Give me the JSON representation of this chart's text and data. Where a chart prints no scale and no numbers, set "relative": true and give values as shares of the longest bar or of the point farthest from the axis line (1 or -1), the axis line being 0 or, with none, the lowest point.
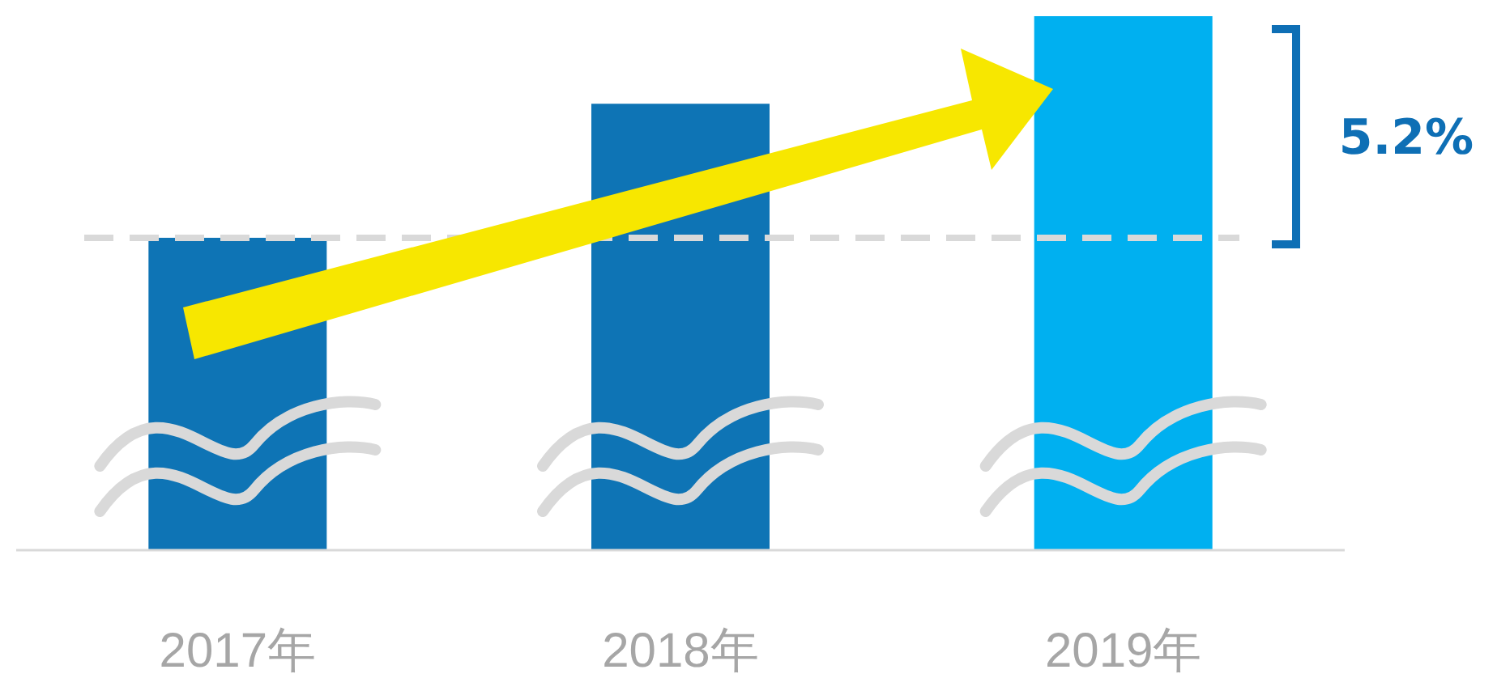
{
  "chart_data": {
    "type": "bar",
    "relative": true,
    "categories": [
      "2017年",
      "2018年",
      "2019年"
    ],
    "values": [
      0.585,
      0.836,
      1
    ],
    "colors": [
      "#0e74b5",
      "#0e74b5",
      "#00b0f0"
    ],
    "ref_lines": [
      {
        "axis": "y",
        "value": 0.585,
        "color": "#d9d9d9",
        "line_style": "dashed"
      }
    ],
    "annotations": [
      "5.2%"
    ]
  }
}
